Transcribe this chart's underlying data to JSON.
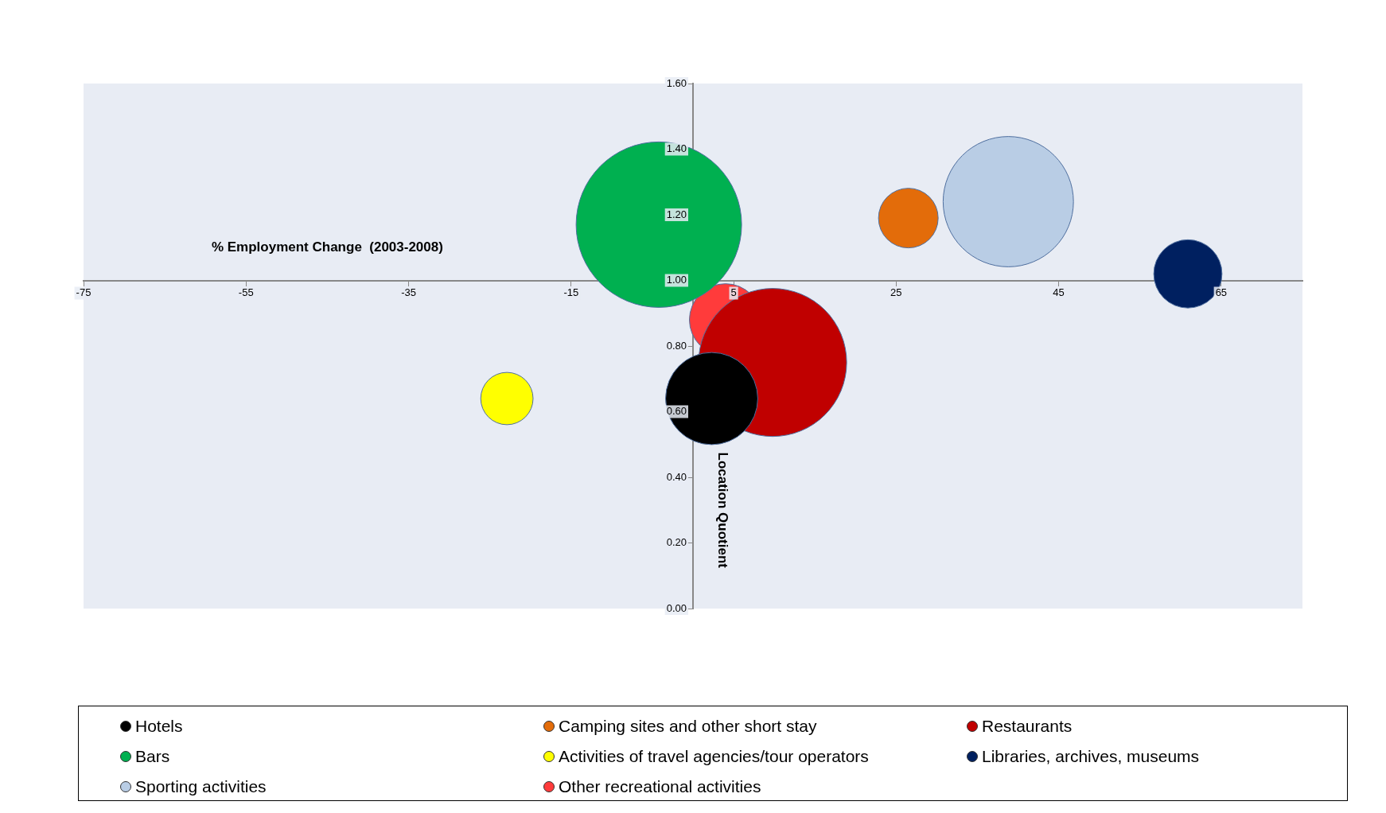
{
  "chart_data": {
    "type": "bubble",
    "xlabel": "% Employment Change  (2003-2008)",
    "ylabel": "Location Quotient",
    "xlim": [
      -75,
      75
    ],
    "xticks": [
      -75,
      -55,
      -35,
      -15,
      5,
      25,
      45,
      65
    ],
    "ylim": [
      0,
      1.6
    ],
    "yticks": [
      {
        "value": 0,
        "label": "0.00"
      },
      {
        "value": 0.2,
        "label": "0.20"
      },
      {
        "value": 0.4,
        "label": "0.40"
      },
      {
        "value": 0.6,
        "label": "0.60"
      },
      {
        "value": 0.8,
        "label": "0.80"
      },
      {
        "value": 1,
        "label": "1.00"
      },
      {
        "value": 1.2,
        "label": "1.20"
      },
      {
        "value": 1.4,
        "label": "1.40"
      },
      {
        "value": 1.6,
        "label": "1.60"
      }
    ],
    "grid": false,
    "legend": "bottom",
    "series": [
      {
        "name": "Hotels",
        "color": "#000000",
        "x": [
          2.3
        ],
        "values": [
          0.64
        ],
        "sizes": [
          0.31
        ]
      },
      {
        "name": "Camping sites and other short stay",
        "color": "#e36c0a",
        "x": [
          26.5
        ],
        "values": [
          1.19
        ],
        "sizes": [
          0.13
        ]
      },
      {
        "name": "Restaurants",
        "color": "#c00000",
        "x": [
          9.8
        ],
        "values": [
          0.75
        ],
        "sizes": [
          0.8
        ]
      },
      {
        "name": "Bars",
        "color": "#00b050",
        "x": [
          -4.2
        ],
        "values": [
          1.17
        ],
        "sizes": [
          1
        ]
      },
      {
        "name": "Activities of travel agencies/tour operators",
        "color": "#ffff00",
        "x": [
          -22.9
        ],
        "values": [
          0.64
        ],
        "sizes": [
          0.1
        ]
      },
      {
        "name": "Libraries, archives, museums",
        "color": "#002060",
        "x": [
          60.9
        ],
        "values": [
          1.02
        ],
        "sizes": [
          0.17
        ]
      },
      {
        "name": "Sporting activities",
        "color": "#b9cde5",
        "x": [
          38.8
        ],
        "values": [
          1.24
        ],
        "sizes": [
          0.62
        ]
      },
      {
        "name": "Other recreational activities",
        "color": "#ff3b3b",
        "x": [
          4
        ],
        "values": [
          0.88
        ],
        "sizes": [
          0.19
        ]
      }
    ]
  }
}
